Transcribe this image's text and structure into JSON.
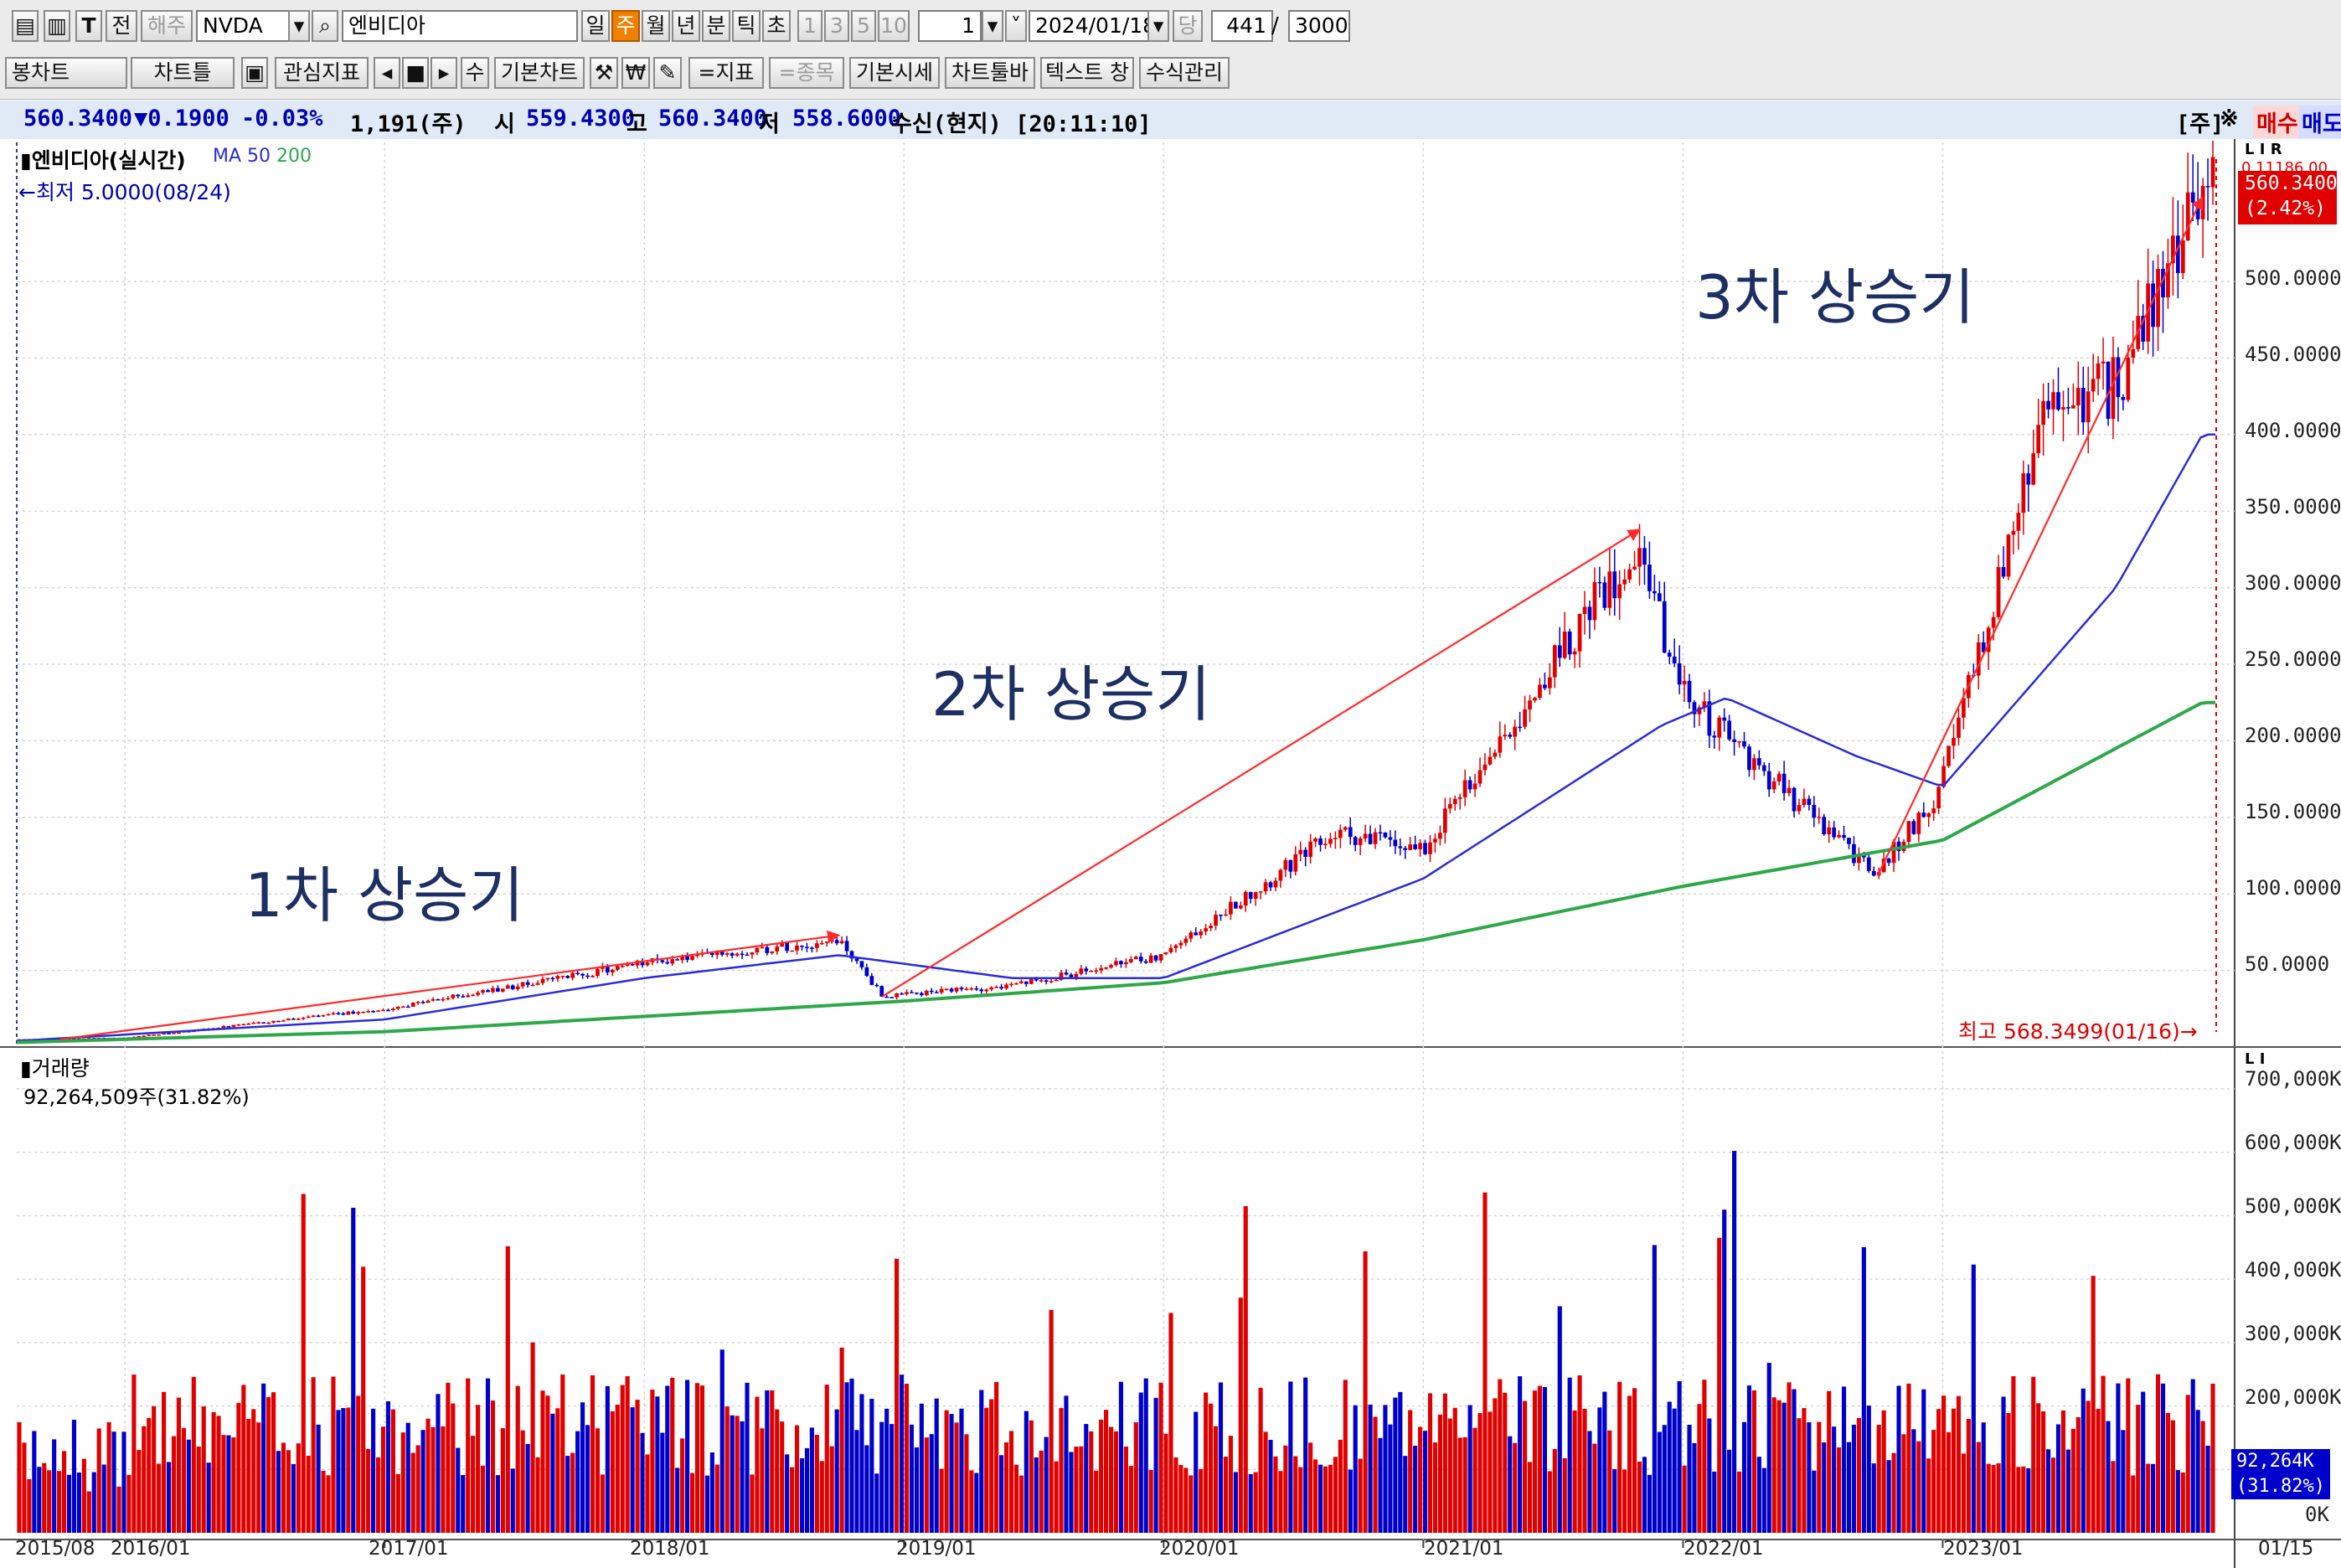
{
  "toolbar1": {
    "code": "NVDA",
    "name": "엔비디아",
    "period_buttons": [
      "일",
      "주",
      "월",
      "년",
      "분",
      "틱",
      "초"
    ],
    "active_period": "주",
    "interval_buttons": [
      "1",
      "3",
      "5",
      "10"
    ],
    "interval_value": "1",
    "date": "2024/01/18",
    "dang": "당",
    "count": "441",
    "slash": "/",
    "total": "3000",
    "haeju": "해주",
    "jeon": "전"
  },
  "toolbar2": {
    "chart_type": "봉차트",
    "buttons": [
      "차트틀",
      "관심지표",
      "기본차트",
      "=지표",
      "=종목",
      "기본시세",
      "차트툴바",
      "텍스트 창",
      "수식관리"
    ],
    "su": "수"
  },
  "info_bar": {
    "price": "560.3400",
    "change": "▼0.1900",
    "change_pct": "-0.03%",
    "volume": "1,191(주)",
    "open_label": "시",
    "open": "559.4300",
    "high_label": "고",
    "high": "560.3400",
    "low_label": "저",
    "low": "558.6000",
    "feed": "수신(현지) [20:11:10]",
    "unit": "[주]",
    "buy": "매수",
    "sell": "매도"
  },
  "price_panel": {
    "title": "엔비디아(실시간)",
    "ma_label": "MA",
    "ma_periods": [
      "50",
      "200"
    ],
    "min_label": "←최저 5.0000(08/24)",
    "max_label": "최고 568.3499(01/16)→",
    "current_price_tag": "560.3400",
    "current_pct_tag": "(2.42%)",
    "top_partial": "0.11186.00",
    "yticks": [
      "500.0000",
      "450.0000",
      "400.0000",
      "350.0000",
      "300.0000",
      "250.0000",
      "200.0000",
      "150.0000",
      "100.0000",
      "50.0000"
    ],
    "lir": "L I R",
    "annotations": [
      "1차 상승기",
      "2차 상승기",
      "3차 상승기"
    ]
  },
  "volume_panel": {
    "title": "거래량",
    "last_volume": "92,264,509주(31.82%)",
    "tag_value": "92,264K",
    "tag_pct": "(31.82%)",
    "yticks": [
      "700,000K",
      "600,000K",
      "500,000K",
      "400,000K",
      "300,000K",
      "200,000K",
      "0K"
    ]
  },
  "x_axis": {
    "ticks": [
      "2015/08",
      "2016/01",
      "2017/01",
      "2018/01",
      "2019/01",
      "2020/01",
      "2021/01",
      "2022/01",
      "2023/01",
      "01/15"
    ]
  },
  "colors": {
    "up": "#e00000",
    "down": "#0000cc",
    "ma50": "#2b2bd9",
    "ma200": "#2ea84a",
    "annotation_arrow": "#ff2a2a",
    "annotation_text": "#1e2f63"
  },
  "chart_data": {
    "type": "candlestick",
    "period": "weekly",
    "x_range": [
      "2015-08",
      "2024-01"
    ],
    "price_ylim": [
      0,
      570
    ],
    "volume_ylim": [
      0,
      720000000
    ],
    "price_path_approx": [
      {
        "x": "2015-08",
        "close": 5
      },
      {
        "x": "2016-01",
        "close": 6
      },
      {
        "x": "2017-01",
        "close": 25
      },
      {
        "x": "2018-01",
        "close": 55
      },
      {
        "x": "2018-10",
        "close": 70
      },
      {
        "x": "2018-12",
        "close": 33
      },
      {
        "x": "2019-06",
        "close": 40
      },
      {
        "x": "2020-01",
        "close": 60
      },
      {
        "x": "2020-09",
        "close": 140
      },
      {
        "x": "2021-01",
        "close": 130
      },
      {
        "x": "2021-11",
        "close": 330
      },
      {
        "x": "2022-01",
        "close": 230
      },
      {
        "x": "2022-10",
        "close": 112
      },
      {
        "x": "2023-01",
        "close": 170
      },
      {
        "x": "2023-06",
        "close": 420
      },
      {
        "x": "2023-09",
        "close": 430
      },
      {
        "x": "2024-01",
        "close": 560
      }
    ],
    "ma50_approx": [
      {
        "x": "2015-08",
        "v": 4
      },
      {
        "x": "2017-01",
        "v": 18
      },
      {
        "x": "2018-01",
        "v": 45
      },
      {
        "x": "2018-10",
        "v": 60
      },
      {
        "x": "2019-06",
        "v": 45
      },
      {
        "x": "2020-01",
        "v": 45
      },
      {
        "x": "2021-01",
        "v": 110
      },
      {
        "x": "2021-12",
        "v": 210
      },
      {
        "x": "2022-03",
        "v": 228
      },
      {
        "x": "2022-09",
        "v": 190
      },
      {
        "x": "2023-01",
        "v": 170
      },
      {
        "x": "2023-09",
        "v": 300
      },
      {
        "x": "2024-01",
        "v": 400
      }
    ],
    "ma200_approx": [
      {
        "x": "2015-08",
        "v": 3
      },
      {
        "x": "2017-01",
        "v": 10
      },
      {
        "x": "2018-01",
        "v": 20
      },
      {
        "x": "2019-01",
        "v": 30
      },
      {
        "x": "2020-01",
        "v": 42
      },
      {
        "x": "2021-01",
        "v": 70
      },
      {
        "x": "2022-01",
        "v": 105
      },
      {
        "x": "2023-01",
        "v": 135
      },
      {
        "x": "2024-01",
        "v": 225
      }
    ]
  }
}
